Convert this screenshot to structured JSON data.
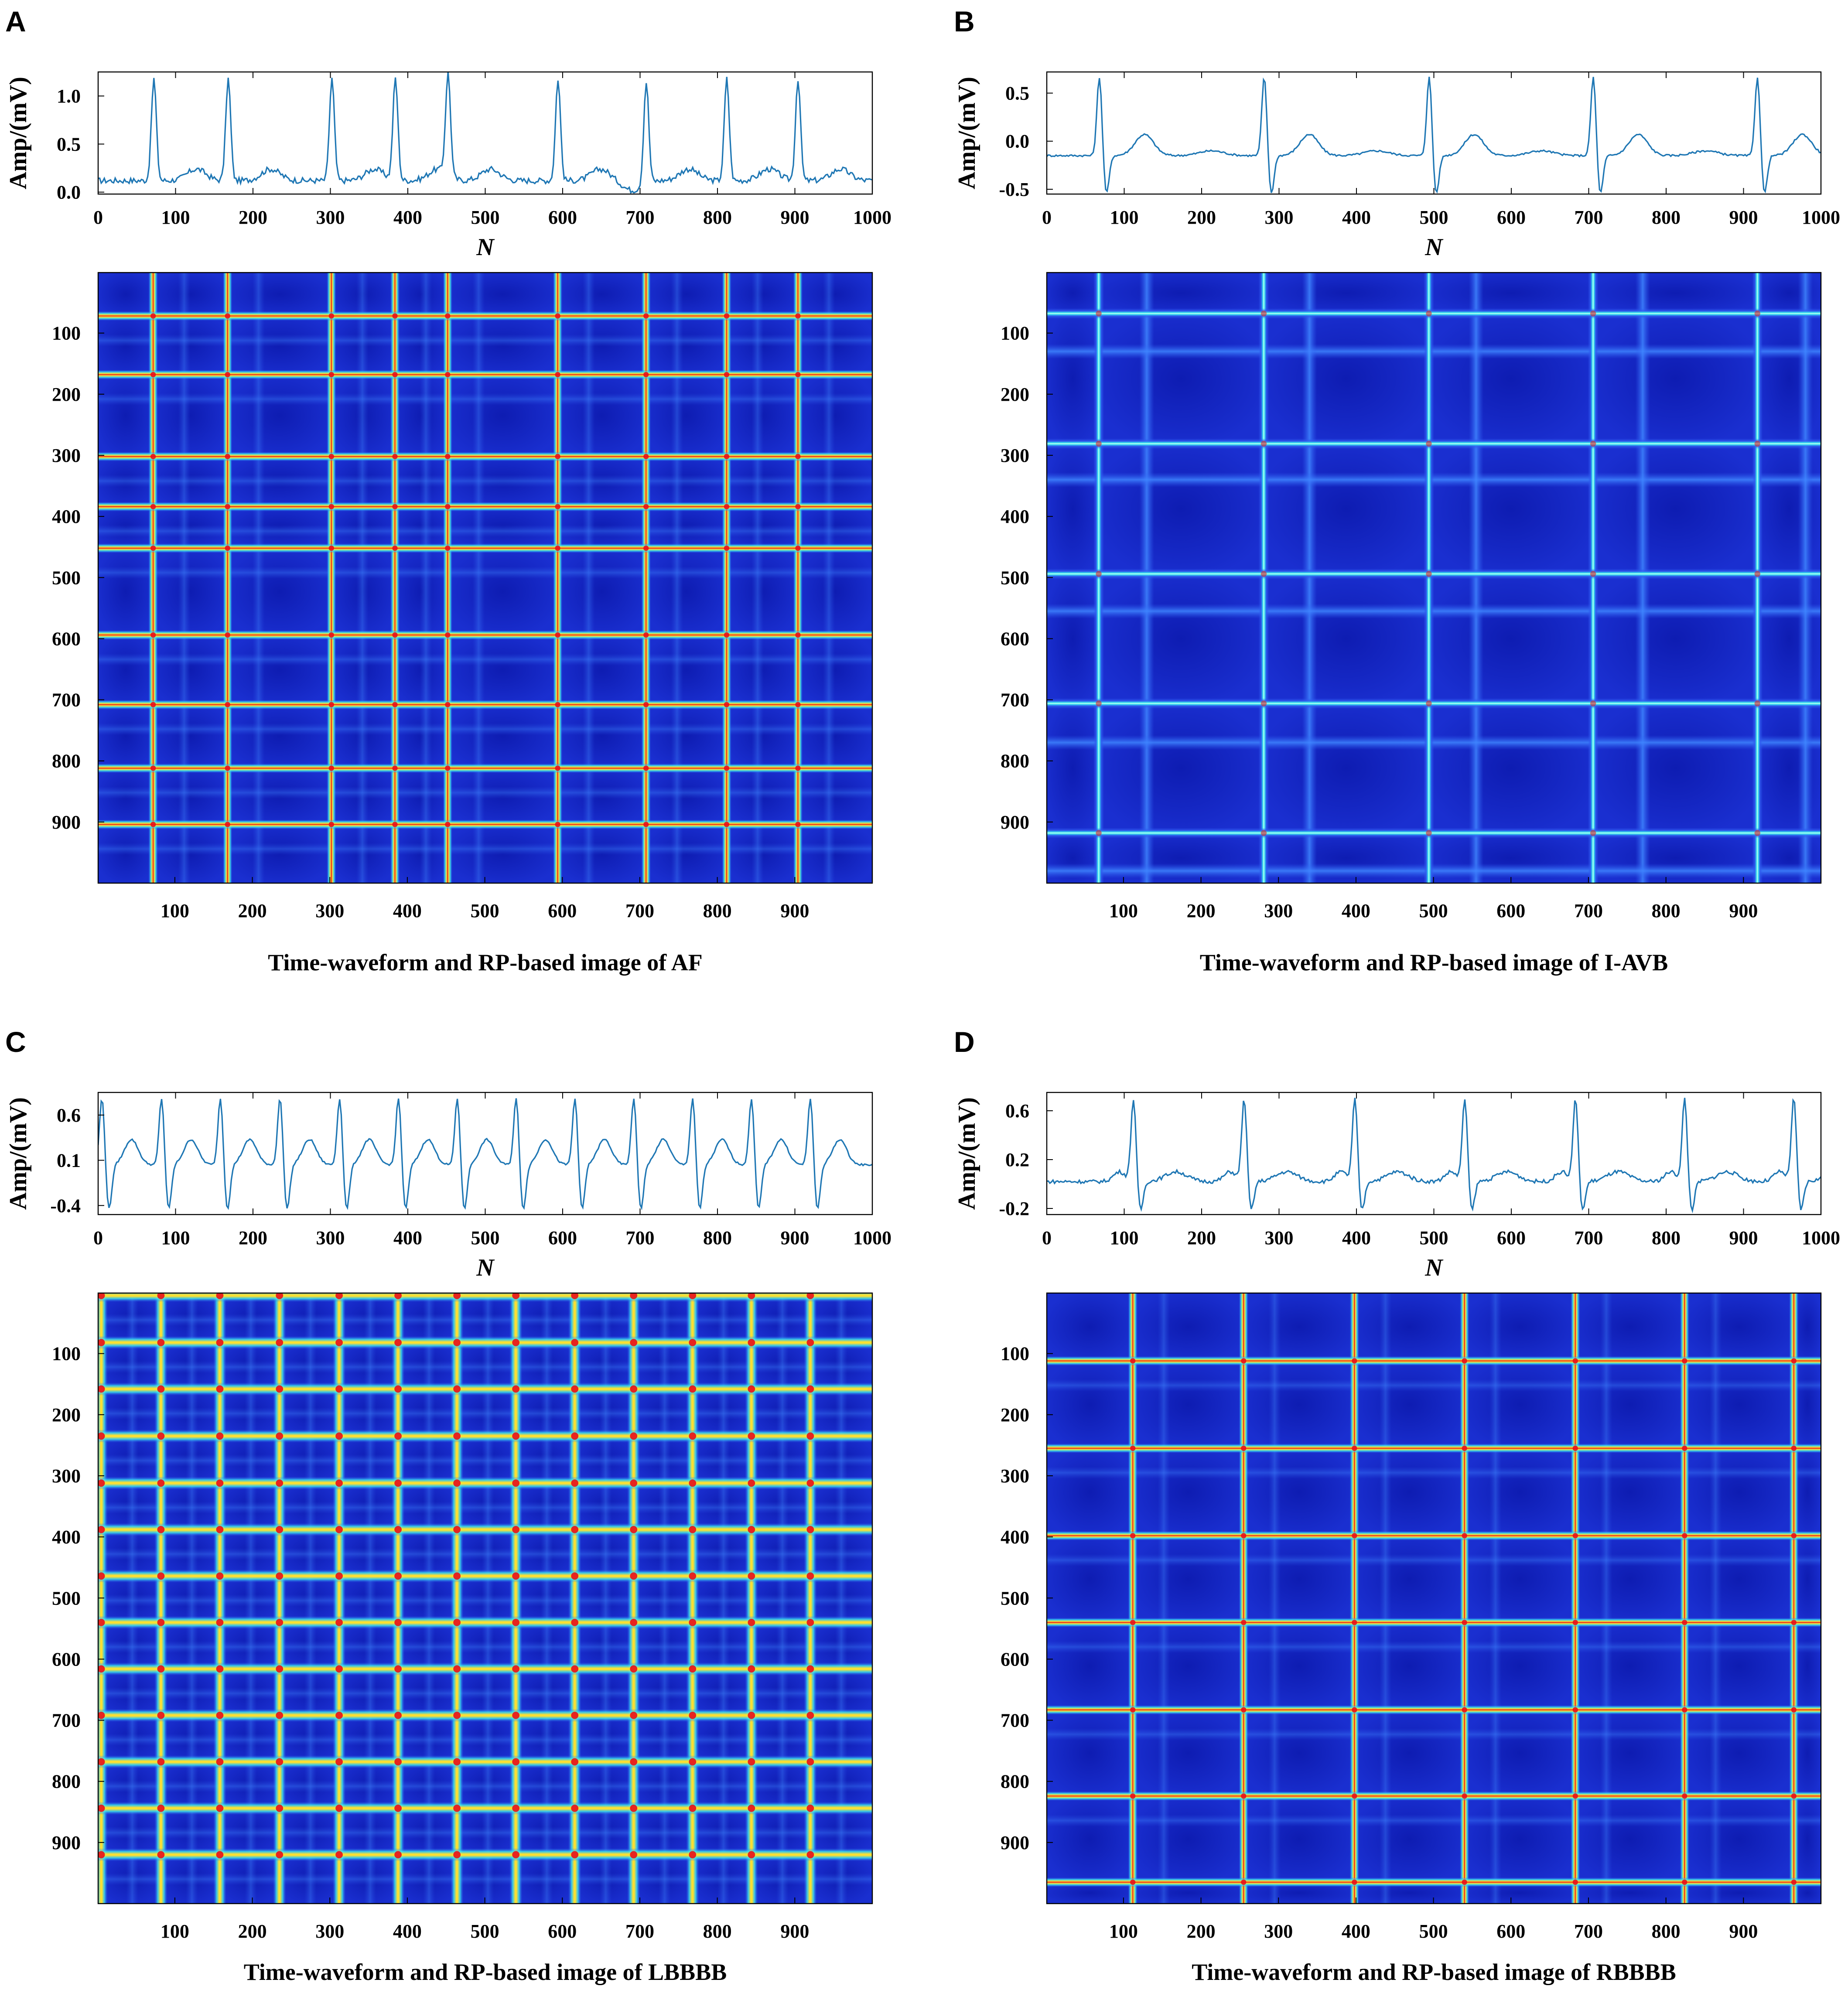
{
  "colors": {
    "waveform_line": "#1f77b4",
    "rp_background": "#1a2fd0",
    "rp_deep": "#0a16a8",
    "rp_mid": "#2f5cf0",
    "rp_cyan": "#39e8f0",
    "rp_yellow": "#ffe030",
    "rp_red": "#e8101a"
  },
  "chart_data": [
    {
      "type": "line",
      "panel_letter": "A",
      "title": "Time-waveform and RP-based image of AF",
      "waveform": {
        "xlabel": "N",
        "ylabel": "Amp/(mV)",
        "xlim": [
          0,
          1000
        ],
        "ylim": [
          -0.02,
          1.25
        ],
        "xticks": [
          0,
          100,
          200,
          300,
          400,
          500,
          600,
          700,
          800,
          900,
          1000
        ],
        "yticks": [
          0.0,
          0.5,
          1.0
        ],
        "ytick_labels": [
          "0.0",
          "0.5",
          "1.0"
        ],
        "baseline": 0.12,
        "r_amplitude": 1.18,
        "r_peaks": [
          72,
          168,
          302,
          384,
          452,
          594,
          708,
          812,
          904
        ],
        "features": [
          {
            "offset": 55,
            "width": 30,
            "amplitude": 0.12
          }
        ],
        "noise": 0.03,
        "dips": [
          {
            "x": 690,
            "amplitude": -0.1
          }
        ]
      },
      "recurrence_plot": {
        "type": "heatmap",
        "xlim": [
          1,
          1000
        ],
        "ylim": [
          1,
          1000
        ],
        "xticks": [
          100,
          200,
          300,
          400,
          500,
          600,
          700,
          800,
          900
        ],
        "yticks": [
          100,
          200,
          300,
          400,
          500,
          600,
          700,
          800,
          900
        ],
        "line_positions": [
          72,
          168,
          302,
          384,
          452,
          594,
          708,
          812,
          904
        ],
        "line_style": "red-core",
        "grid": false
      }
    },
    {
      "type": "line",
      "panel_letter": "B",
      "title": "Time-waveform and RP-based image of I-AVB",
      "waveform": {
        "xlabel": "N",
        "ylabel": "Amp/(mV)",
        "xlim": [
          0,
          1000
        ],
        "ylim": [
          -0.55,
          0.72
        ],
        "xticks": [
          0,
          100,
          200,
          300,
          400,
          500,
          600,
          700,
          800,
          900,
          1000
        ],
        "yticks": [
          -0.5,
          0.0,
          0.5
        ],
        "ytick_labels": [
          "-0.5",
          "0.0",
          "0.5"
        ],
        "baseline": -0.15,
        "r_amplitude": 0.68,
        "s_amplitude": -0.55,
        "r_peaks": [
          68,
          281,
          494,
          706,
          918
        ],
        "features": [
          {
            "offset": 58,
            "width": 30,
            "amplitude": 0.22
          },
          {
            "offset": 145,
            "width": 40,
            "amplitude": 0.05
          }
        ],
        "noise": 0.01
      },
      "recurrence_plot": {
        "type": "heatmap",
        "xlim": [
          1,
          1000
        ],
        "ylim": [
          1,
          1000
        ],
        "xticks": [
          100,
          200,
          300,
          400,
          500,
          600,
          700,
          800,
          900
        ],
        "yticks": [
          100,
          200,
          300,
          400,
          500,
          600,
          700,
          800,
          900
        ],
        "line_positions": [
          68,
          281,
          494,
          706,
          918
        ],
        "secondary_positions": [
          130,
          340,
          555,
          770,
          980
        ],
        "line_style": "cyan",
        "grid": false
      }
    },
    {
      "type": "line",
      "panel_letter": "C",
      "title": "Time-waveform and RP-based image of LBBBB",
      "waveform": {
        "xlabel": "N",
        "ylabel": "Amp/(mV)",
        "xlim": [
          0,
          1000
        ],
        "ylim": [
          -0.5,
          0.85
        ],
        "xticks": [
          0,
          100,
          200,
          300,
          400,
          500,
          600,
          700,
          800,
          900,
          1000
        ],
        "yticks": [
          -0.4,
          0.1,
          0.6
        ],
        "ytick_labels": [
          "-0.4",
          "0.1",
          "0.6"
        ],
        "baseline": 0.05,
        "r_amplitude": 0.8,
        "s_amplitude": -0.45,
        "r_peaks": [
          5,
          82,
          158,
          235,
          312,
          388,
          464,
          540,
          616,
          692,
          768,
          844,
          920
        ],
        "features": [
          {
            "offset": 38,
            "width": 22,
            "amplitude": 0.28
          }
        ],
        "noise": 0.01
      },
      "recurrence_plot": {
        "type": "heatmap",
        "xlim": [
          1,
          1000
        ],
        "ylim": [
          1,
          1000
        ],
        "xticks": [
          100,
          200,
          300,
          400,
          500,
          600,
          700,
          800,
          900
        ],
        "yticks": [
          100,
          200,
          300,
          400,
          500,
          600,
          700,
          800,
          900
        ],
        "line_positions": [
          5,
          82,
          158,
          235,
          312,
          388,
          464,
          540,
          616,
          692,
          768,
          844,
          920
        ],
        "line_style": "yellow-core",
        "grid": false
      }
    },
    {
      "type": "line",
      "panel_letter": "D",
      "title": "Time-waveform and RP-based image of RBBBB",
      "waveform": {
        "xlabel": "N",
        "ylabel": "Amp/(mV)",
        "xlim": [
          0,
          1000
        ],
        "ylim": [
          -0.25,
          0.75
        ],
        "xticks": [
          0,
          100,
          200,
          300,
          400,
          500,
          600,
          700,
          800,
          900,
          1000
        ],
        "yticks": [
          -0.2,
          0.2,
          0.6
        ],
        "ytick_labels": [
          "-0.2",
          "0.2",
          "0.6"
        ],
        "baseline": 0.02,
        "r_amplitude": 0.7,
        "s_amplitude": -0.22,
        "r_peaks": [
          112,
          255,
          398,
          540,
          683,
          824,
          965
        ],
        "features": [
          {
            "offset": -18,
            "width": 20,
            "amplitude": 0.08
          },
          {
            "offset": 55,
            "width": 35,
            "amplitude": 0.08
          }
        ],
        "noise": 0.015
      },
      "recurrence_plot": {
        "type": "heatmap",
        "xlim": [
          1,
          1000
        ],
        "ylim": [
          1,
          1000
        ],
        "xticks": [
          100,
          200,
          300,
          400,
          500,
          600,
          700,
          800,
          900
        ],
        "yticks": [
          100,
          200,
          300,
          400,
          500,
          600,
          700,
          800,
          900
        ],
        "line_positions": [
          112,
          255,
          398,
          540,
          683,
          824,
          965
        ],
        "line_style": "red-core",
        "grid": false
      }
    }
  ]
}
